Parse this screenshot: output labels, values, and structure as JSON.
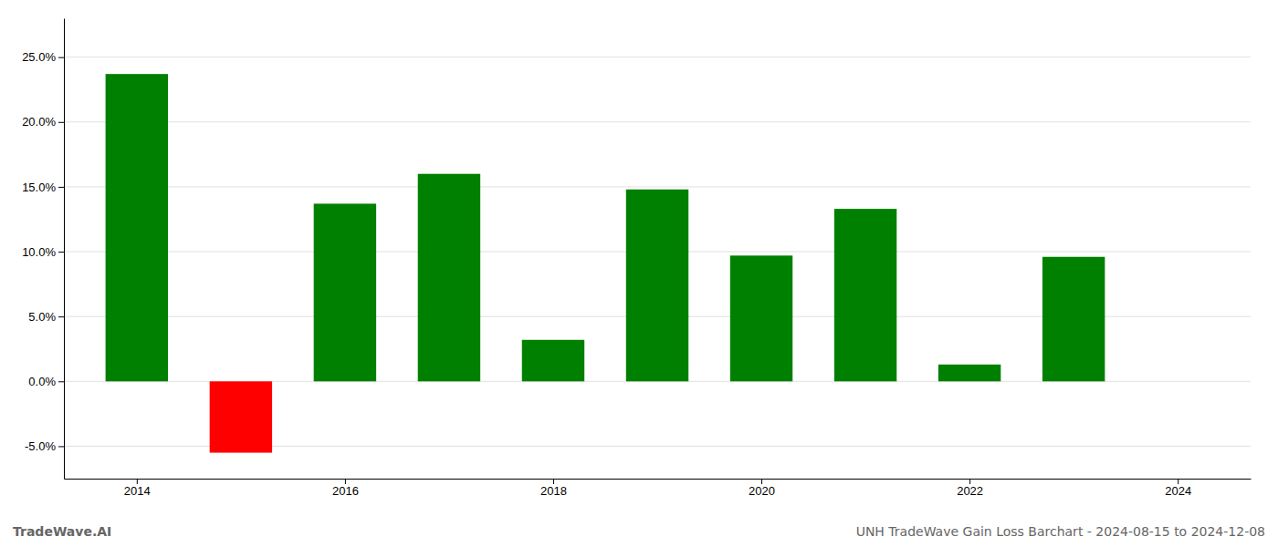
{
  "chart_data": {
    "type": "bar",
    "x": [
      2014,
      2015,
      2016,
      2017,
      2018,
      2019,
      2020,
      2021,
      2022,
      2023
    ],
    "values": [
      0.237,
      -0.055,
      0.137,
      0.16,
      0.032,
      0.148,
      0.097,
      0.133,
      0.013,
      0.096
    ],
    "colors": [
      "#008000",
      "#ff0000",
      "#008000",
      "#008000",
      "#008000",
      "#008000",
      "#008000",
      "#008000",
      "#008000",
      "#008000"
    ],
    "xlim": [
      2013.3,
      2024.7
    ],
    "xticks": [
      2014,
      2016,
      2018,
      2020,
      2022,
      2024
    ],
    "ylim": [
      -0.075,
      0.28
    ],
    "yticks": [
      {
        "value": -0.05,
        "label": "-5.0%"
      },
      {
        "value": 0.0,
        "label": "0.0%"
      },
      {
        "value": 0.05,
        "label": "5.0%"
      },
      {
        "value": 0.1,
        "label": "10.0%"
      },
      {
        "value": 0.15,
        "label": "15.0%"
      },
      {
        "value": 0.2,
        "label": "20.0%"
      },
      {
        "value": 0.25,
        "label": "25.0%"
      }
    ],
    "grid": true,
    "annotations": [
      "TradeWave.AI",
      "UNH TradeWave Gain Loss Barchart - 2024-08-15 to 2024-12-08"
    ]
  }
}
